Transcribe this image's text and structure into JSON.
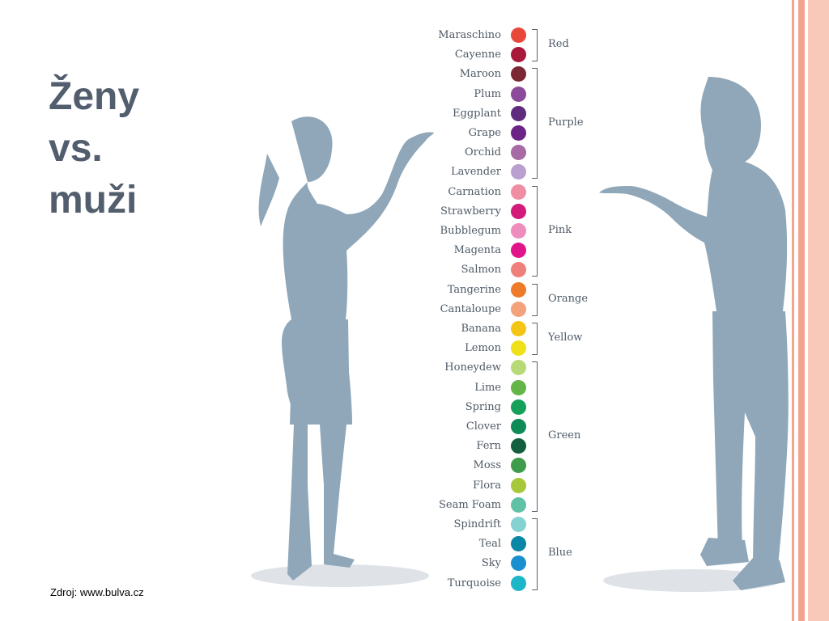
{
  "slide": {
    "title_lines": [
      "Ženy",
      "vs.",
      "muži"
    ],
    "source": "Zdroj: www.bulva.cz"
  },
  "accent_color": "#f3a48f",
  "figure_color": "#8fa7b9",
  "colors": [
    {
      "name": "Maraschino",
      "hex": "#e8483a"
    },
    {
      "name": "Cayenne",
      "hex": "#a7183b"
    },
    {
      "name": "Maroon",
      "hex": "#7c2734"
    },
    {
      "name": "Plum",
      "hex": "#8b4a9a"
    },
    {
      "name": "Eggplant",
      "hex": "#5e2b7f"
    },
    {
      "name": "Grape",
      "hex": "#6c2486"
    },
    {
      "name": "Orchid",
      "hex": "#a66aa4"
    },
    {
      "name": "Lavender",
      "hex": "#b9a0cf"
    },
    {
      "name": "Carnation",
      "hex": "#ef8ea3"
    },
    {
      "name": "Strawberry",
      "hex": "#d21b78"
    },
    {
      "name": "Bubblegum",
      "hex": "#ee8cbd"
    },
    {
      "name": "Magenta",
      "hex": "#e0158a"
    },
    {
      "name": "Salmon",
      "hex": "#ef7f7a"
    },
    {
      "name": "Tangerine",
      "hex": "#ee7b2b"
    },
    {
      "name": "Cantaloupe",
      "hex": "#f4a27b"
    },
    {
      "name": "Banana",
      "hex": "#f4c515"
    },
    {
      "name": "Lemon",
      "hex": "#efe019"
    },
    {
      "name": "Honeydew",
      "hex": "#b8d977"
    },
    {
      "name": "Lime",
      "hex": "#64b547"
    },
    {
      "name": "Spring",
      "hex": "#15a05a"
    },
    {
      "name": "Clover",
      "hex": "#0f8b58"
    },
    {
      "name": "Fern",
      "hex": "#135e3e"
    },
    {
      "name": "Moss",
      "hex": "#3f9c4a"
    },
    {
      "name": "Flora",
      "hex": "#a6c83a"
    },
    {
      "name": "Seam Foam",
      "hex": "#5fc2a6"
    },
    {
      "name": "Spindrift",
      "hex": "#85d2d0"
    },
    {
      "name": "Teal",
      "hex": "#0a86a6"
    },
    {
      "name": "Sky",
      "hex": "#1a8fcf"
    },
    {
      "name": "Turquoise",
      "hex": "#1db6c8"
    }
  ],
  "groups": [
    {
      "label": "Red",
      "from": 0,
      "to": 1
    },
    {
      "label": "Purple",
      "from": 2,
      "to": 7
    },
    {
      "label": "Pink",
      "from": 8,
      "to": 12
    },
    {
      "label": "Orange",
      "from": 13,
      "to": 14
    },
    {
      "label": "Yellow",
      "from": 15,
      "to": 16
    },
    {
      "label": "Green",
      "from": 17,
      "to": 24
    },
    {
      "label": "Blue",
      "from": 25,
      "to": 28
    }
  ]
}
